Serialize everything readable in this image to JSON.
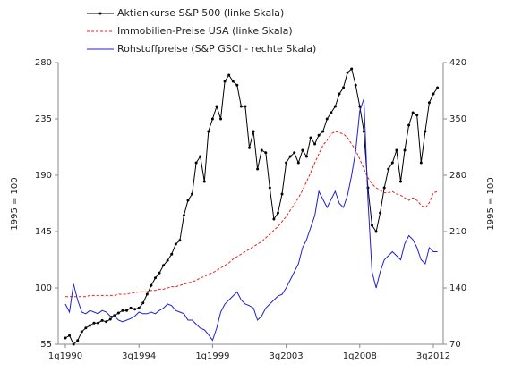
{
  "chart_data": {
    "type": "line",
    "categories": [
      "1q1990",
      null,
      null,
      null,
      null,
      null,
      null,
      null,
      null,
      null,
      null,
      null,
      null,
      null,
      null,
      null,
      null,
      null,
      "3q1994",
      null,
      null,
      null,
      null,
      null,
      null,
      null,
      null,
      null,
      null,
      null,
      null,
      null,
      null,
      null,
      null,
      null,
      "1q1999",
      null,
      null,
      null,
      null,
      null,
      null,
      null,
      null,
      null,
      null,
      null,
      null,
      null,
      null,
      null,
      null,
      null,
      "3q2003",
      null,
      null,
      null,
      null,
      null,
      null,
      null,
      null,
      null,
      null,
      null,
      null,
      null,
      null,
      null,
      null,
      null,
      "1q2008",
      null,
      null,
      null,
      null,
      null,
      null,
      null,
      null,
      null,
      null,
      null,
      null,
      null,
      null,
      null,
      null,
      null,
      "3q2012",
      null
    ],
    "series": [
      {
        "name": "Aktienkurse S&P 500 (linke Skala)",
        "color": "#000000",
        "marker": true,
        "dashed": false,
        "values": [
          60,
          62,
          55,
          58,
          65,
          68,
          70,
          72,
          72,
          74,
          73,
          75,
          78,
          80,
          82,
          82,
          84,
          83,
          84,
          88,
          95,
          102,
          108,
          112,
          118,
          122,
          127,
          135,
          138,
          158,
          170,
          175,
          200,
          205,
          185,
          225,
          235,
          245,
          235,
          265,
          270,
          265,
          262,
          245,
          245,
          212,
          225,
          195,
          210,
          208,
          180,
          155,
          160,
          175,
          200,
          205,
          208,
          200,
          210,
          205,
          220,
          215,
          222,
          225,
          235,
          240,
          245,
          255,
          260,
          272,
          275,
          262,
          245,
          225,
          180,
          150,
          145,
          160,
          180,
          195,
          200,
          210,
          185,
          210,
          230,
          240,
          238,
          200,
          225,
          248,
          255,
          260
        ]
      },
      {
        "name": "Immobilien-Preise USA (linke Skala)",
        "color": "#e8231b",
        "marker": false,
        "dashed": true,
        "values": [
          93,
          93,
          93,
          93,
          93,
          93,
          94,
          94,
          94,
          94,
          94,
          94,
          94,
          95,
          95,
          95,
          96,
          96,
          97,
          97,
          97,
          98,
          98,
          99,
          99,
          100,
          101,
          101,
          102,
          103,
          104,
          105,
          106,
          108,
          109,
          111,
          112,
          114,
          116,
          118,
          120,
          123,
          125,
          127,
          129,
          131,
          133,
          135,
          137,
          140,
          143,
          146,
          149,
          153,
          157,
          162,
          167,
          172,
          178,
          185,
          192,
          200,
          207,
          214,
          218,
          223,
          225,
          224,
          223,
          220,
          215,
          210,
          203,
          195,
          188,
          183,
          180,
          178,
          176,
          176,
          177,
          175,
          174,
          172,
          170,
          172,
          170,
          166,
          164,
          168,
          176,
          177
        ]
      },
      {
        "name": "Rohstoffpreise (S&P GSCI - rechte Skala)",
        "color": "#1f1fd0",
        "marker": false,
        "dashed": false,
        "axis": "y2",
        "values": [
          120,
          110,
          145,
          125,
          110,
          108,
          112,
          110,
          108,
          112,
          110,
          105,
          105,
          100,
          98,
          100,
          102,
          105,
          110,
          108,
          108,
          110,
          108,
          112,
          115,
          120,
          118,
          112,
          110,
          108,
          100,
          100,
          95,
          90,
          88,
          82,
          75,
          90,
          110,
          120,
          125,
          130,
          135,
          125,
          120,
          118,
          115,
          100,
          105,
          115,
          120,
          125,
          130,
          132,
          140,
          150,
          160,
          170,
          190,
          200,
          215,
          230,
          260,
          250,
          240,
          250,
          260,
          245,
          240,
          255,
          280,
          310,
          360,
          375,
          250,
          160,
          140,
          160,
          175,
          180,
          185,
          180,
          175,
          195,
          205,
          200,
          190,
          175,
          170,
          190,
          185,
          185
        ]
      }
    ],
    "y_label": "1995 = 100",
    "y2_label": "1995 = 100",
    "ylim": [
      55,
      280
    ],
    "yticks": [
      55,
      100,
      145,
      190,
      235,
      280
    ],
    "y2lim": [
      70,
      420
    ],
    "y2ticks": [
      70,
      140,
      210,
      280,
      350,
      420
    ]
  }
}
